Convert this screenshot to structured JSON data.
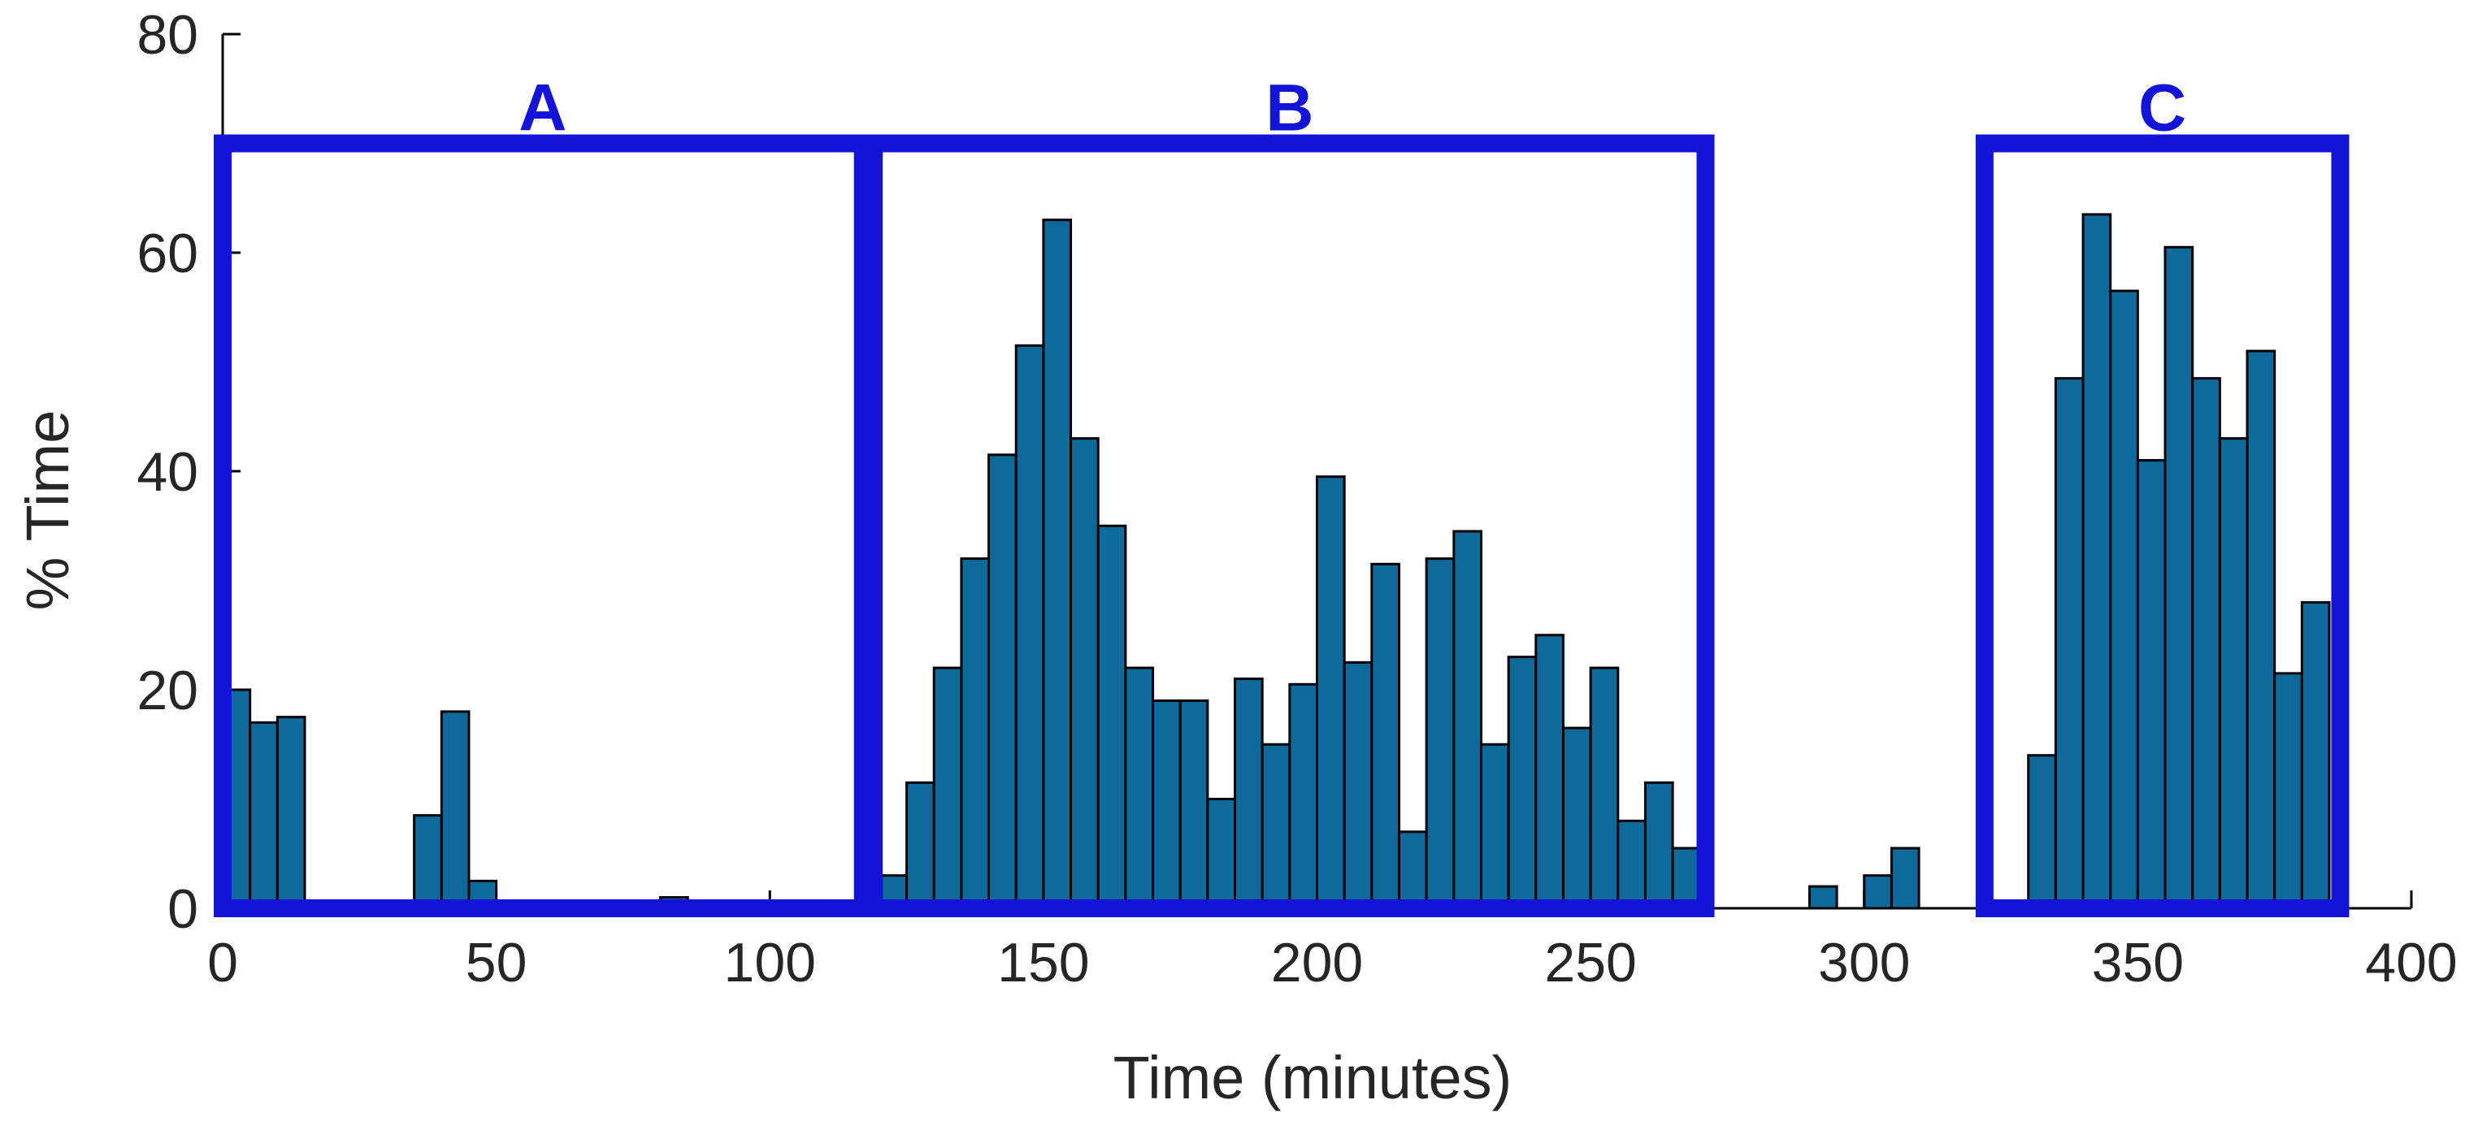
{
  "chart_data": {
    "type": "bar",
    "xlabel": "Time (minutes)",
    "ylabel": "% Time",
    "xlim": [
      0,
      400
    ],
    "ylim": [
      0,
      80
    ],
    "xticks": [
      0,
      50,
      100,
      150,
      200,
      250,
      300,
      350,
      400
    ],
    "yticks": [
      0,
      20,
      40,
      60,
      80
    ],
    "bin_width": 5,
    "bar_color": "#0e6a9a",
    "bar_edge_color": "#000000",
    "box_color": "#1414d8",
    "series": [
      {
        "x": [
          0,
          5,
          10,
          35,
          40,
          45,
          80,
          120,
          125,
          130,
          135,
          140,
          145,
          150,
          155,
          160,
          165,
          170,
          175,
          180,
          185,
          190,
          195,
          200,
          205,
          210,
          215,
          220,
          225,
          230,
          235,
          240,
          245,
          250,
          255,
          260,
          265,
          290,
          300,
          305,
          330,
          335,
          340,
          345,
          350,
          355,
          360,
          365,
          370,
          375,
          380
        ],
        "values": [
          20,
          17,
          17.5,
          8.5,
          18,
          2.5,
          1,
          3,
          11.5,
          22,
          32,
          41.5,
          51.5,
          63,
          43,
          35,
          22,
          19,
          19,
          10,
          21,
          15,
          20.5,
          39.5,
          22.5,
          31.5,
          7,
          32,
          34.5,
          15,
          23,
          25,
          16.5,
          22,
          8,
          11.5,
          5.5,
          2,
          3,
          5.5,
          14,
          48.5,
          63.5,
          56.5,
          41,
          60.5,
          48.5,
          43,
          51,
          21.5,
          28
        ]
      }
    ],
    "annotations": [
      {
        "label": "A",
        "x_range": [
          0,
          117
        ],
        "y_top": 70
      },
      {
        "label": "B",
        "x_range": [
          119,
          271
        ],
        "y_top": 70
      },
      {
        "label": "C",
        "x_range": [
          322,
          387
        ],
        "y_top": 70
      }
    ],
    "grid": false
  }
}
